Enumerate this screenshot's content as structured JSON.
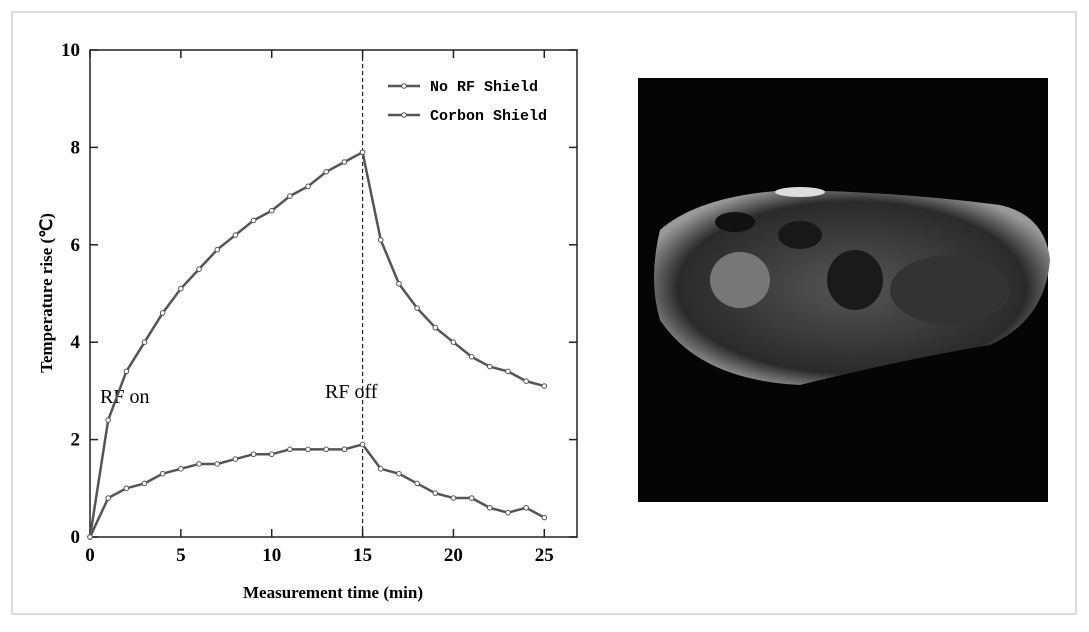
{
  "chart_data": {
    "type": "line",
    "xlabel": "Measurement time (min)",
    "ylabel": "Temperature rise  (℃)",
    "x": [
      0,
      1,
      2,
      3,
      4,
      5,
      6,
      7,
      8,
      9,
      10,
      11,
      12,
      13,
      14,
      15,
      16,
      17,
      18,
      19,
      20,
      21,
      22,
      23,
      24,
      25
    ],
    "series": [
      {
        "name": "No RF Shield",
        "color": "#555555",
        "values": [
          0,
          2.4,
          3.4,
          4.0,
          4.6,
          5.1,
          5.5,
          5.9,
          6.2,
          6.5,
          6.7,
          7.0,
          7.2,
          7.5,
          7.7,
          7.9,
          6.1,
          5.2,
          4.7,
          4.3,
          4.0,
          3.7,
          3.5,
          3.4,
          3.2,
          3.1
        ]
      },
      {
        "name": "Corbon Shield",
        "color": "#555555",
        "values": [
          0,
          0.8,
          1.0,
          1.1,
          1.3,
          1.4,
          1.5,
          1.5,
          1.6,
          1.7,
          1.7,
          1.8,
          1.8,
          1.8,
          1.8,
          1.9,
          1.4,
          1.3,
          1.1,
          0.9,
          0.8,
          0.8,
          0.6,
          0.5,
          0.6,
          0.4
        ]
      }
    ],
    "xlim": [
      0,
      26.8
    ],
    "xticks": [
      0,
      5,
      10,
      15,
      20,
      25
    ],
    "ylim": [
      0,
      10
    ],
    "yticks": [
      0,
      2,
      4,
      6,
      8,
      10
    ],
    "vline": 15,
    "annotations": [
      "RF on",
      "RF off"
    ],
    "legend": "upper right",
    "grid": false
  }
}
